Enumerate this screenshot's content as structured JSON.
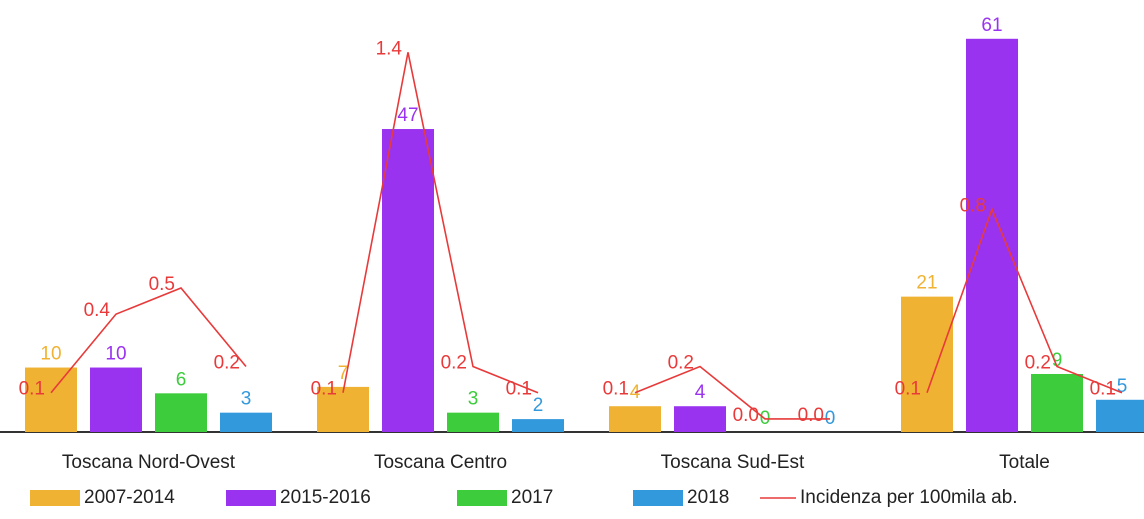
{
  "chart_data": {
    "type": "bar",
    "categories": [
      "Toscana Nord-Ovest",
      "Toscana Centro",
      "Toscana Sud-Est",
      "Totale"
    ],
    "series": [
      {
        "name": "2007-2014",
        "color": "#f0b232",
        "values": [
          10,
          7,
          4,
          21
        ]
      },
      {
        "name": "2015-2016",
        "color": "#9a33f0",
        "values": [
          10,
          47,
          4,
          61
        ]
      },
      {
        "name": "2017",
        "color": "#3ccc3c",
        "values": [
          6,
          3,
          0,
          9
        ]
      },
      {
        "name": "2018",
        "color": "#3399dd",
        "values": [
          3,
          2,
          0,
          5
        ]
      },
      {
        "name": "Incidenza per 100mila ab.",
        "color": "#e83a3a",
        "type": "line",
        "axis": "y2",
        "values": [
          [
            0.1,
            0.4,
            0.5,
            0.2
          ],
          [
            0.1,
            1.4,
            0.2,
            0.1
          ],
          [
            0.1,
            0.2,
            0.0,
            0.0
          ],
          [
            0.1,
            0.8,
            0.2,
            0.1
          ]
        ],
        "value_labels": [
          [
            "0.1",
            "0.4",
            "0.5",
            "0.2"
          ],
          [
            "0.1",
            "1.4",
            "0.2",
            "0.1"
          ],
          [
            "0.1",
            "0.2",
            "0.0",
            "0.0"
          ],
          [
            "0.1",
            "0.8",
            "0.2",
            "0.1"
          ]
        ]
      }
    ],
    "ylim": [
      0,
      65
    ],
    "y2lim": [
      -0.05,
      1.55
    ]
  }
}
